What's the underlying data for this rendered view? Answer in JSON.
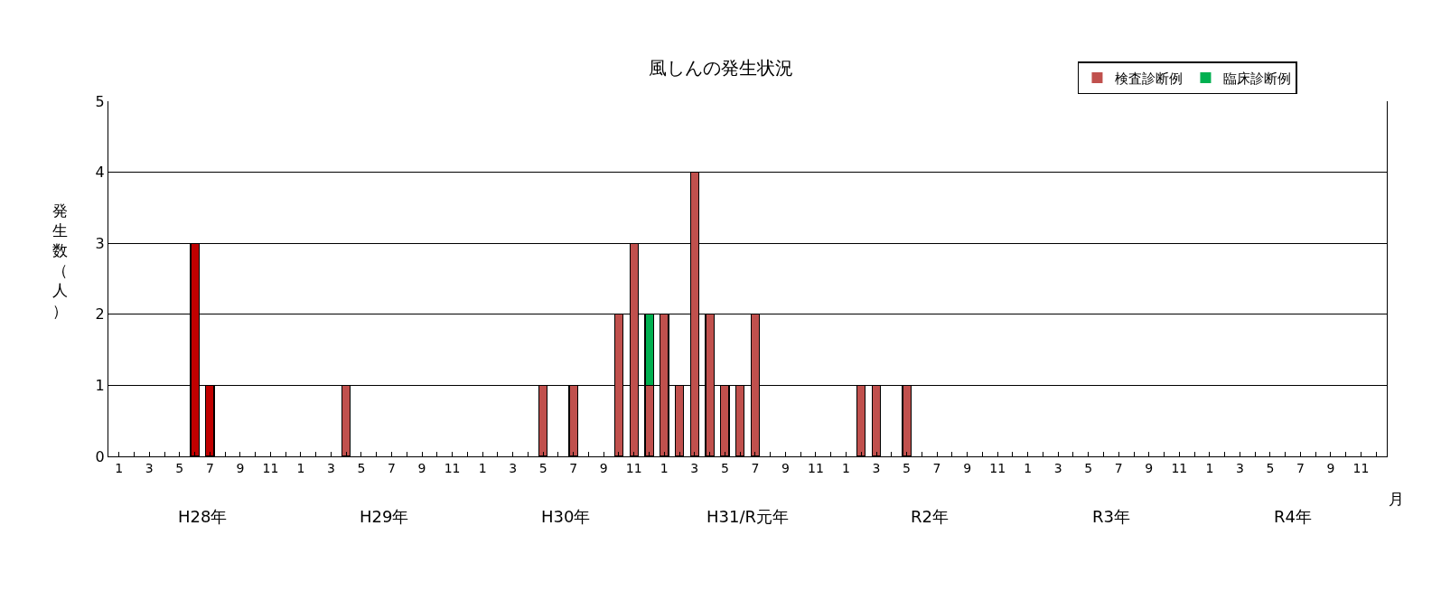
{
  "chart_data": {
    "type": "bar",
    "title": "風しんの発生状況",
    "ylabel": "発生数（人）",
    "xlabel": "月",
    "categories": [
      "1",
      null,
      "3",
      null,
      "5",
      null,
      "7",
      null,
      "9",
      null,
      "11",
      null,
      "1",
      null,
      "3",
      null,
      "5",
      null,
      "7",
      null,
      "9",
      null,
      "11",
      null,
      "1",
      null,
      "3",
      null,
      "5",
      null,
      "7",
      null,
      "9",
      null,
      "11",
      null,
      "1",
      null,
      "3",
      null,
      "5",
      null,
      "7",
      null,
      "9",
      null,
      "11",
      null,
      "1",
      null,
      "3",
      null,
      "5",
      null,
      "7",
      null,
      "9",
      null,
      "11",
      null,
      "1",
      null,
      "3",
      null,
      "5",
      null,
      "7",
      null,
      "9",
      null,
      "11",
      null,
      "1",
      null,
      "3",
      null,
      "5",
      null,
      "7",
      null,
      "9",
      null,
      "11",
      null
    ],
    "annotations": [
      "H28年",
      "H29年",
      "H30年",
      "H31/R元年",
      "R2年",
      "R3年",
      "R4年"
    ],
    "stacked": true,
    "series": [
      {
        "name": "検査診断例",
        "color": "#c0504d",
        "colors": [
          "#c0504d",
          "#c0504d",
          "#c0504d",
          "#c0504d",
          "#c0504d",
          "#c00000",
          "#c00000",
          "#c0504d",
          "#c0504d",
          "#c0504d",
          "#c0504d",
          "#c0504d",
          "#c0504d",
          "#c0504d",
          "#c0504d",
          "#c0504d",
          "#c0504d",
          "#c0504d",
          "#c0504d",
          "#c0504d",
          "#c0504d",
          "#c0504d",
          "#c0504d",
          "#c0504d",
          "#c0504d",
          "#c0504d",
          "#c0504d",
          "#c0504d",
          "#c0504d",
          "#c0504d",
          "#c0504d",
          "#c0504d",
          "#c0504d",
          "#c0504d",
          "#c0504d",
          "#c0504d",
          "#c0504d",
          "#c0504d",
          "#c0504d",
          "#c0504d",
          "#c0504d",
          "#c0504d",
          "#c0504d",
          "#c0504d",
          "#c0504d",
          "#c0504d",
          "#c0504d",
          "#c0504d",
          "#c0504d",
          "#c0504d",
          "#c0504d",
          "#c0504d",
          "#c0504d",
          "#c0504d",
          "#c0504d",
          "#c0504d",
          "#c0504d",
          "#c0504d",
          "#c0504d",
          "#c0504d",
          "#c0504d",
          "#c0504d",
          "#c0504d",
          "#c0504d",
          "#c0504d",
          "#c0504d",
          "#c0504d",
          "#c0504d",
          "#c0504d",
          "#c0504d",
          "#c0504d",
          "#c0504d",
          "#c0504d",
          "#c0504d",
          "#c0504d",
          "#c0504d",
          "#c0504d",
          "#c0504d",
          "#c0504d",
          "#c0504d",
          "#c0504d",
          "#c0504d",
          "#c0504d",
          "#c0504d"
        ],
        "values": [
          0,
          0,
          0,
          0,
          0,
          3,
          1,
          0,
          0,
          0,
          0,
          0,
          0,
          0,
          0,
          1,
          0,
          0,
          0,
          0,
          0,
          0,
          0,
          0,
          0,
          0,
          0,
          0,
          1,
          0,
          1,
          0,
          0,
          2,
          3,
          1,
          2,
          1,
          4,
          2,
          1,
          1,
          2,
          0,
          0,
          0,
          0,
          0,
          0,
          1,
          1,
          0,
          1,
          0,
          0,
          0,
          0,
          0,
          0,
          0,
          0,
          0,
          0,
          0,
          0,
          0,
          0,
          0,
          0,
          0,
          0,
          0,
          0,
          0,
          0,
          0,
          0,
          0,
          0,
          0,
          0,
          0,
          0,
          0
        ]
      },
      {
        "name": "臨床診断例",
        "color": "#00b050",
        "values": [
          0,
          0,
          0,
          0,
          0,
          0,
          0,
          0,
          0,
          0,
          0,
          0,
          0,
          0,
          0,
          0,
          0,
          0,
          0,
          0,
          0,
          0,
          0,
          0,
          0,
          0,
          0,
          0,
          0,
          0,
          0,
          0,
          0,
          0,
          0,
          1,
          0,
          0,
          0,
          0,
          0,
          0,
          0,
          0,
          0,
          0,
          0,
          0,
          0,
          0,
          0,
          0,
          0,
          0,
          0,
          0,
          0,
          0,
          0,
          0,
          0,
          0,
          0,
          0,
          0,
          0,
          0,
          0,
          0,
          0,
          0,
          0,
          0,
          0,
          0,
          0,
          0,
          0,
          0,
          0,
          0,
          0,
          0,
          0
        ]
      }
    ],
    "ylim": [
      0,
      5
    ],
    "yticks": [
      0,
      1,
      2,
      3,
      4,
      5
    ],
    "grid": "y",
    "legend": "top right"
  }
}
